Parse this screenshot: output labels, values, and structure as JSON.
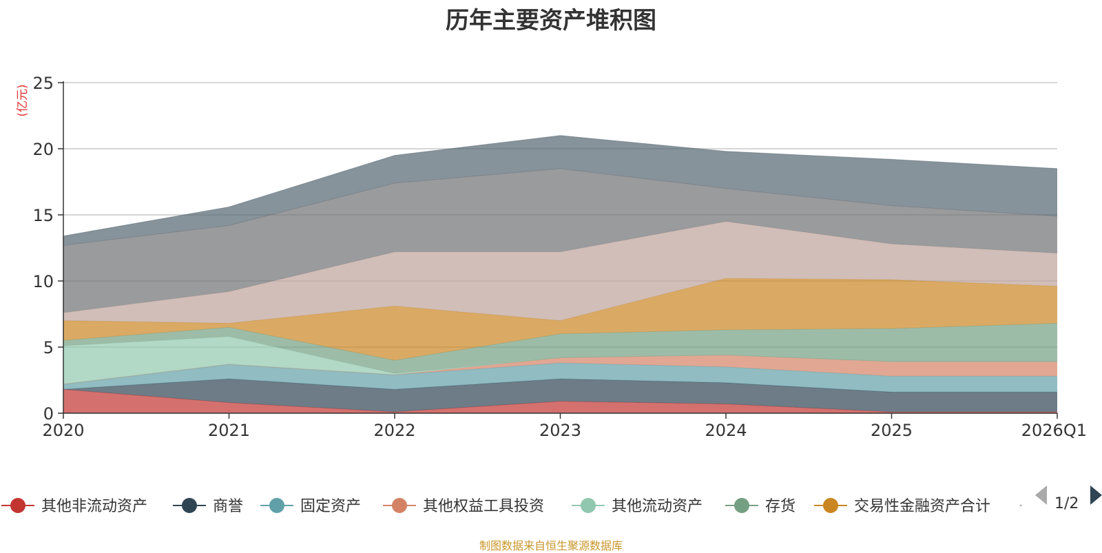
{
  "title": "历年主要资产堆积图",
  "y_unit": "(亿元)",
  "source": "制图数据来自恒生聚源数据库",
  "legend_pager": "1/2",
  "colors": {
    "其他非流动资产": "#c23531",
    "商誉": "#2f4554",
    "固定资产": "#61a0a8",
    "其他权益工具投资": "#d48265",
    "其他流动资产": "#91c7ae",
    "存货": "#749f83",
    "交易性金融资产合计": "#ca8622",
    "series8": "#bda29a",
    "series9": "#6e7074",
    "series10": "#546570",
    "title_text": "#333333",
    "source_text": "#c8962a",
    "unit_text": "#e03030"
  },
  "chart_data": {
    "type": "area",
    "stacked": true,
    "title": "历年主要资产堆积图",
    "ylabel": "(亿元)",
    "xlabel": "",
    "categories": [
      "2020",
      "2021",
      "2022",
      "2023",
      "2024",
      "2025",
      "2026Q1"
    ],
    "ylim": [
      0,
      25
    ],
    "yticks": [
      0,
      5,
      10,
      15,
      20,
      25
    ],
    "grid": true,
    "legend_position": "bottom",
    "series": [
      {
        "name": "其他非流动资产",
        "values": [
          1.8,
          0.8,
          0.1,
          0.9,
          0.7,
          0.1,
          0.1
        ],
        "in_legend": true
      },
      {
        "name": "商誉",
        "values": [
          0.0,
          1.8,
          1.7,
          1.7,
          1.6,
          1.5,
          1.5
        ],
        "in_legend": true
      },
      {
        "name": "固定资产",
        "values": [
          0.4,
          1.1,
          1.1,
          1.2,
          1.2,
          1.2,
          1.2
        ],
        "in_legend": true
      },
      {
        "name": "其他权益工具投资",
        "values": [
          0.0,
          0.0,
          0.0,
          0.4,
          0.9,
          1.1,
          1.1
        ],
        "in_legend": true
      },
      {
        "name": "其他流动资产",
        "values": [
          2.9,
          2.1,
          0.1,
          0.0,
          0.0,
          0.0,
          0.0
        ],
        "in_legend": true
      },
      {
        "name": "存货",
        "values": [
          0.4,
          0.7,
          1.0,
          1.8,
          1.9,
          2.5,
          2.9
        ],
        "in_legend": true
      },
      {
        "name": "交易性金融资产合计",
        "values": [
          1.5,
          0.3,
          4.1,
          1.0,
          3.9,
          3.7,
          2.8
        ],
        "in_legend": true
      },
      {
        "values": [
          0.6,
          2.4,
          4.1,
          5.2,
          4.3,
          2.7,
          2.5
        ],
        "in_legend": false
      },
      {
        "values": [
          5.1,
          5.0,
          5.2,
          6.3,
          2.5,
          2.9,
          2.8
        ],
        "in_legend": false
      },
      {
        "values": [
          0.7,
          1.4,
          2.1,
          2.5,
          2.8,
          3.5,
          3.6
        ],
        "in_legend": false
      }
    ]
  }
}
